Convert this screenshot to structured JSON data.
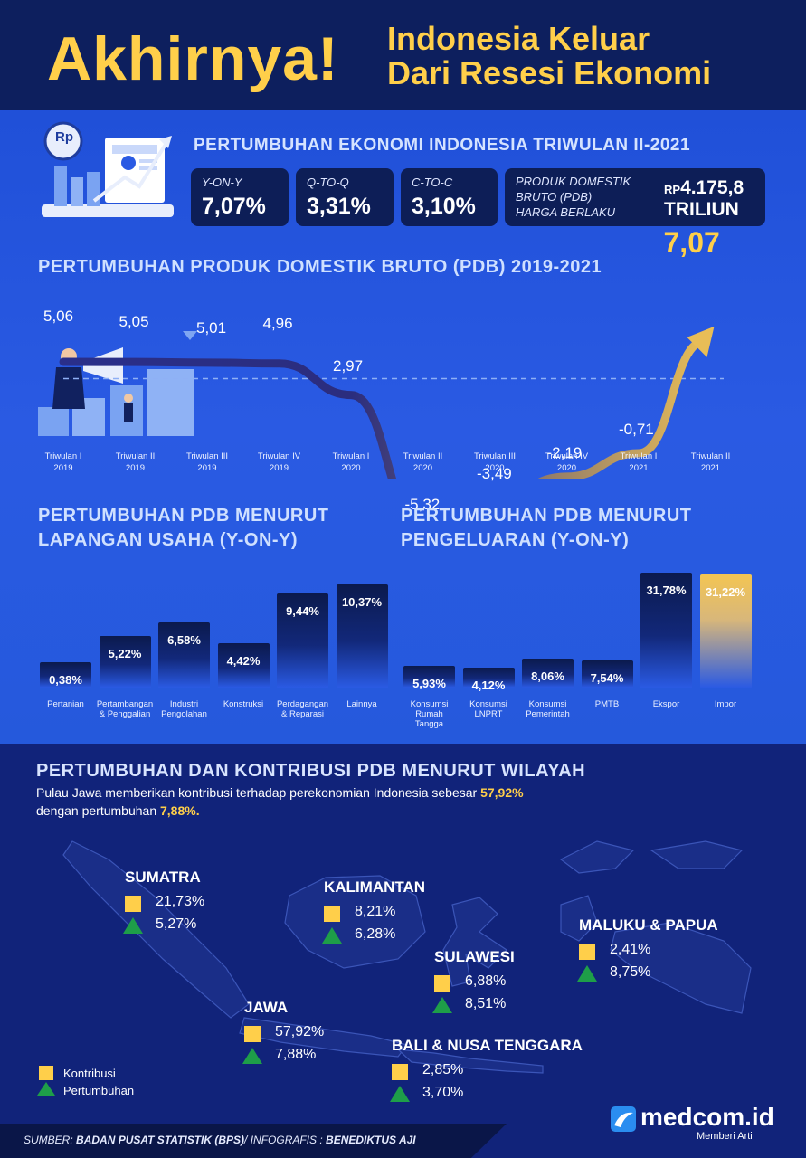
{
  "header": {
    "big": "Akhirnya!",
    "line1": "Indonesia Keluar",
    "line2": "Dari Resesi Ekonomi"
  },
  "summary": {
    "title": "PERTUMBUHAN EKONOMI INDONESIA TRIWULAN II-2021",
    "rp_icon": "Rp",
    "boxes": [
      {
        "label": "Y-ON-Y",
        "value": "7,07%"
      },
      {
        "label": "Q-TO-Q",
        "value": "3,31%"
      },
      {
        "label": "C-TO-C",
        "value": "3,10%"
      }
    ],
    "pdb": {
      "label1": "PRODUK DOMESTIK",
      "label2": "BRUTO (PDB)",
      "label3": "HARGA BERLAKU",
      "rp": "RP",
      "value": "4.175,8",
      "unit": "TRILIUN"
    }
  },
  "line_chart_title": "PERTUMBUHAN PRODUK DOMESTIK BRUTO (PDB) 2019-2021",
  "sector_title": {
    "line1": "PERTUMBUHAN PDB MENURUT",
    "line2": "LAPANGAN USAHA (Y-ON-Y)"
  },
  "expend_title": {
    "line1": "PERTUMBUHAN PDB MENURUT",
    "line2": "PENGELUARAN (Y-ON-Y)"
  },
  "chart_data": [
    {
      "type": "line",
      "title": "PERTUMBUHAN PRODUK DOMESTIK BRUTO (PDB) 2019-2021",
      "categories": [
        [
          "Triwulan I",
          "2019"
        ],
        [
          "Triwulan II",
          "2019"
        ],
        [
          "Triwulan III",
          "2019"
        ],
        [
          "Triwulan IV",
          "2019"
        ],
        [
          "Triwulan I",
          "2020"
        ],
        [
          "Triwulan II",
          "2020"
        ],
        [
          "Triwulan III",
          "2020"
        ],
        [
          "Triwulan IV",
          "2020"
        ],
        [
          "Triwulan I",
          "2021"
        ],
        [
          "Triwulan II",
          "2021"
        ]
      ],
      "values": [
        5.06,
        5.05,
        5.01,
        4.96,
        2.97,
        -5.32,
        -3.49,
        -2.19,
        -0.71,
        7.07
      ],
      "labels": [
        "5,06",
        "5,05",
        "5,01",
        "4,96",
        "2,97",
        "-5,32",
        "-3,49",
        "-2,19",
        "-0,71",
        "7,07"
      ],
      "reference_line": 4.0,
      "colors": {
        "start": "#2a2f8a",
        "end": "#e8bd57"
      }
    },
    {
      "type": "bar",
      "title": "PERTUMBUHAN PDB MENURUT LAPANGAN USAHA (Y-ON-Y)",
      "categories": [
        [
          "Pertanian"
        ],
        [
          "Pertambangan",
          "& Penggalian"
        ],
        [
          "Industri",
          "Pengolahan"
        ],
        [
          "Konstruksi"
        ],
        [
          "Perdagangan",
          "& Reparasi"
        ],
        [
          "Lainnya"
        ]
      ],
      "values": [
        0.38,
        5.22,
        6.58,
        4.42,
        9.44,
        10.37
      ],
      "labels": [
        "0,38%",
        "5,22%",
        "6,58%",
        "4,42%",
        "9,44%",
        "10,37%"
      ]
    },
    {
      "type": "bar",
      "title": "PERTUMBUHAN PDB MENURUT PENGELUARAN (Y-ON-Y)",
      "categories": [
        [
          "Konsumsi",
          "Rumah",
          "Tangga"
        ],
        [
          "Konsumsi",
          "LNPRT"
        ],
        [
          "Konsumsi",
          "Pemerintah"
        ],
        [
          "PMTB"
        ],
        [
          "Ekspor"
        ],
        [
          "Impor"
        ]
      ],
      "values": [
        5.93,
        4.12,
        8.06,
        7.54,
        31.78,
        31.22
      ],
      "labels": [
        "5,93%",
        "4,12%",
        "8,06%",
        "7,54%",
        "31,78%",
        "31,22%"
      ],
      "highlight_index": 5,
      "highlight_color": "#f3c553"
    }
  ],
  "region": {
    "title": "PERTUMBUHAN DAN KONTRIBUSI PDB MENURUT WILAYAH",
    "desc1a": "Pulau Jawa memberikan kontribusi terhadap perekonomian Indonesia sebesar ",
    "desc1b": "57,92%",
    "desc2a": "dengan pertumbuhan ",
    "desc2b": "7,88%.",
    "items": [
      {
        "name": "SUMATRA",
        "kontribusi": "21,73%",
        "pertumbuhan": "5,27%"
      },
      {
        "name": "KALIMANTAN",
        "kontribusi": "8,21%",
        "pertumbuhan": "6,28%"
      },
      {
        "name": "SULAWESI",
        "kontribusi": "6,88%",
        "pertumbuhan": "8,51%"
      },
      {
        "name": "MALUKU & PAPUA",
        "kontribusi": "2,41%",
        "pertumbuhan": "8,75%"
      },
      {
        "name": "JAWA",
        "kontribusi": "57,92%",
        "pertumbuhan": "7,88%"
      },
      {
        "name": "BALI & NUSA TENGGARA",
        "kontribusi": "2,85%",
        "pertumbuhan": "3,70%"
      }
    ],
    "legend": {
      "kontribusi": "Kontribusi",
      "pertumbuhan": "Pertumbuhan"
    }
  },
  "footer": {
    "sumber_label": "SUMBER:",
    "sumber": "BADAN PUSAT STATISTIK (BPS)",
    "infografis_label": "/ INFOGRAFIS :",
    "author": "BENEDIKTUS AJI"
  },
  "brand": {
    "name": "medcom.id",
    "tagline": "Memberi Arti"
  },
  "colors": {
    "accent": "#ffcf4a",
    "green": "#1e9e49",
    "navy": "#0d1f5e",
    "blue": "#2a5ae3"
  }
}
